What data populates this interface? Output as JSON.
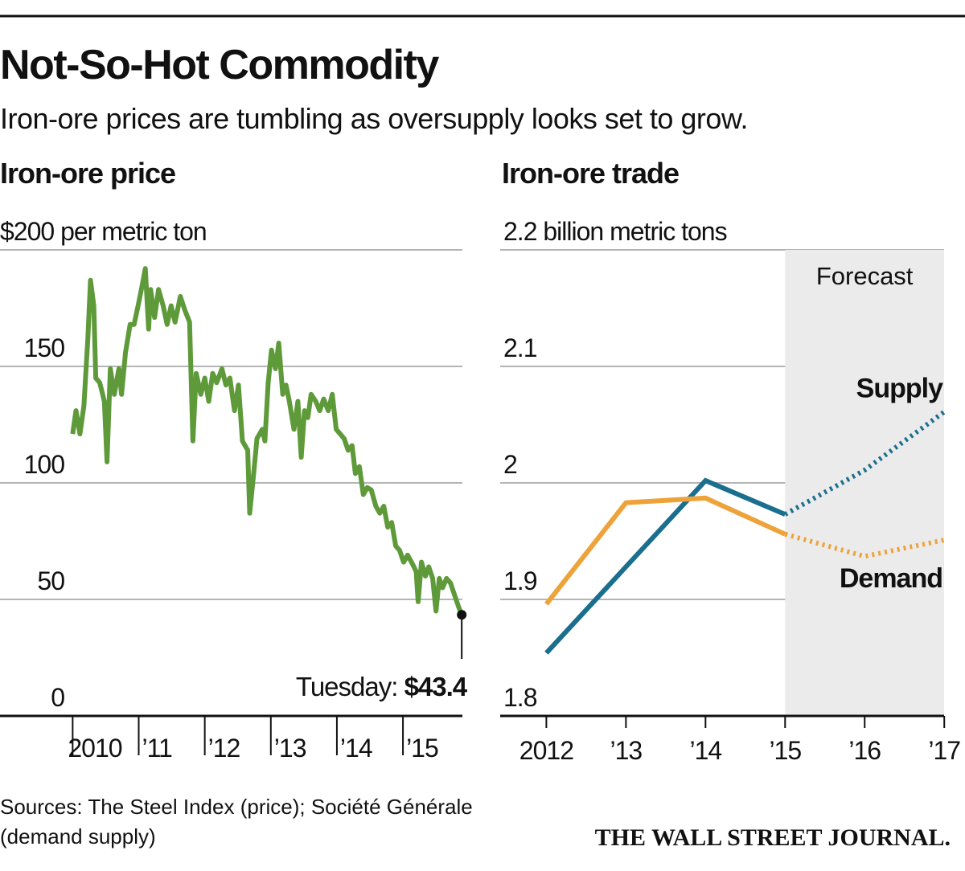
{
  "header": {
    "title": "Not-So-Hot Commodity",
    "subtitle": "Iron-ore prices are tumbling as oversupply looks set to grow."
  },
  "footer": {
    "source_lines": [
      "Sources: The Steel Index (price); Société Générale",
      "(demand supply)"
    ],
    "credit": "THE WALL STREET JOURNAL."
  },
  "chart_data": [
    {
      "type": "line",
      "title": "Iron-ore price",
      "color": "#5e9a3a",
      "x": [
        2010.0,
        2010.05,
        2010.11,
        2010.17,
        2010.23,
        2010.27,
        2010.32,
        2010.35,
        2010.41,
        2010.48,
        2010.52,
        2010.57,
        2010.63,
        2010.7,
        2010.74,
        2010.8,
        2010.87,
        2010.93,
        2010.99,
        2011.04,
        2011.1,
        2011.15,
        2011.18,
        2011.24,
        2011.3,
        2011.37,
        2011.43,
        2011.49,
        2011.55,
        2011.63,
        2011.7,
        2011.77,
        2011.82,
        2011.87,
        2011.94,
        2012.0,
        2012.06,
        2012.12,
        2012.18,
        2012.26,
        2012.32,
        2012.38,
        2012.45,
        2012.51,
        2012.57,
        2012.65,
        2012.68,
        2012.74,
        2012.79,
        2012.87,
        2012.91,
        2012.96,
        2013.01,
        2013.07,
        2013.12,
        2013.18,
        2013.23,
        2013.28,
        2013.35,
        2013.41,
        2013.46,
        2013.51,
        2013.56,
        2013.61,
        2013.68,
        2013.74,
        2013.8,
        2013.87,
        2013.93,
        2013.99,
        2014.05,
        2014.11,
        2014.17,
        2014.23,
        2014.28,
        2014.34,
        2014.4,
        2014.46,
        2014.52,
        2014.59,
        2014.65,
        2014.71,
        2014.77,
        2014.83,
        2014.89,
        2014.95,
        2015.01,
        2015.07,
        2015.13,
        2015.2,
        2015.23,
        2015.28,
        2015.34,
        2015.39,
        2015.45,
        2015.5,
        2015.55,
        2015.6,
        2015.66,
        2015.72,
        2015.78,
        2015.84,
        2015.89
      ],
      "values": [
        121,
        131,
        121,
        133,
        162,
        187,
        176,
        145,
        143,
        135,
        109,
        149,
        138,
        149,
        138,
        156,
        168,
        168,
        176,
        183,
        192,
        166,
        183,
        171,
        183,
        176,
        168,
        176,
        169,
        180,
        174,
        169,
        118,
        147,
        138,
        145,
        135,
        147,
        143,
        149,
        142,
        145,
        131,
        142,
        118,
        114,
        87,
        104,
        119,
        123,
        118,
        143,
        157,
        149,
        160,
        138,
        142,
        135,
        123,
        135,
        111,
        131,
        128,
        138,
        135,
        131,
        136,
        131,
        138,
        123,
        121,
        119,
        114,
        116,
        104,
        107,
        95,
        98,
        97,
        90,
        87,
        90,
        81,
        83,
        73,
        71,
        66,
        69,
        66,
        62,
        49,
        66,
        60,
        64,
        59,
        45,
        59,
        55,
        59,
        57,
        52,
        47,
        43.4
      ],
      "annotation": {
        "text": "Tuesday:",
        "label": "$43.4"
      },
      "xlim": [
        2008.9,
        2015.9
      ],
      "xticks": [
        2010,
        {
          "value": 2011,
          "label": "’11"
        },
        {
          "value": 2012,
          "label": "’12"
        },
        {
          "value": 2013,
          "label": "’13"
        },
        {
          "value": 2014,
          "label": "’14"
        },
        {
          "value": 2015,
          "label": "’15"
        }
      ],
      "ylim": [
        0,
        200
      ],
      "yticks": [
        0,
        50,
        100,
        150,
        {
          "value": 200,
          "label": "$200 per metric ton"
        }
      ],
      "grid": true
    },
    {
      "type": "line",
      "title": "Iron-ore trade",
      "x": [
        2012,
        2013,
        2014,
        2015,
        2016,
        2017
      ],
      "series": [
        {
          "name": "Supply",
          "color": "#1a6e8e",
          "values": [
            1.854,
            1.928,
            2.002,
            1.973,
            2.011,
            2.061
          ]
        },
        {
          "name": "Demand",
          "color": "#eea33a",
          "values": [
            1.896,
            1.983,
            1.987,
            1.956,
            1.937,
            1.951
          ]
        }
      ],
      "forecast": {
        "label": "Forecast",
        "from": 2015
      },
      "xlim": [
        2011.42,
        2017.21
      ],
      "xticks": [
        2012,
        {
          "value": 2013,
          "label": "’13"
        },
        {
          "value": 2014,
          "label": "’14"
        },
        {
          "value": 2015,
          "label": "’15"
        },
        {
          "value": 2016,
          "label": "’16"
        },
        {
          "value": 2017,
          "label": "’17"
        }
      ],
      "ylim": [
        1.8,
        2.2
      ],
      "yticks": [
        1.8,
        1.9,
        2.0,
        2.1,
        {
          "value": 2.2,
          "label": "2.2 billion metric tons"
        }
      ],
      "grid": true
    }
  ]
}
